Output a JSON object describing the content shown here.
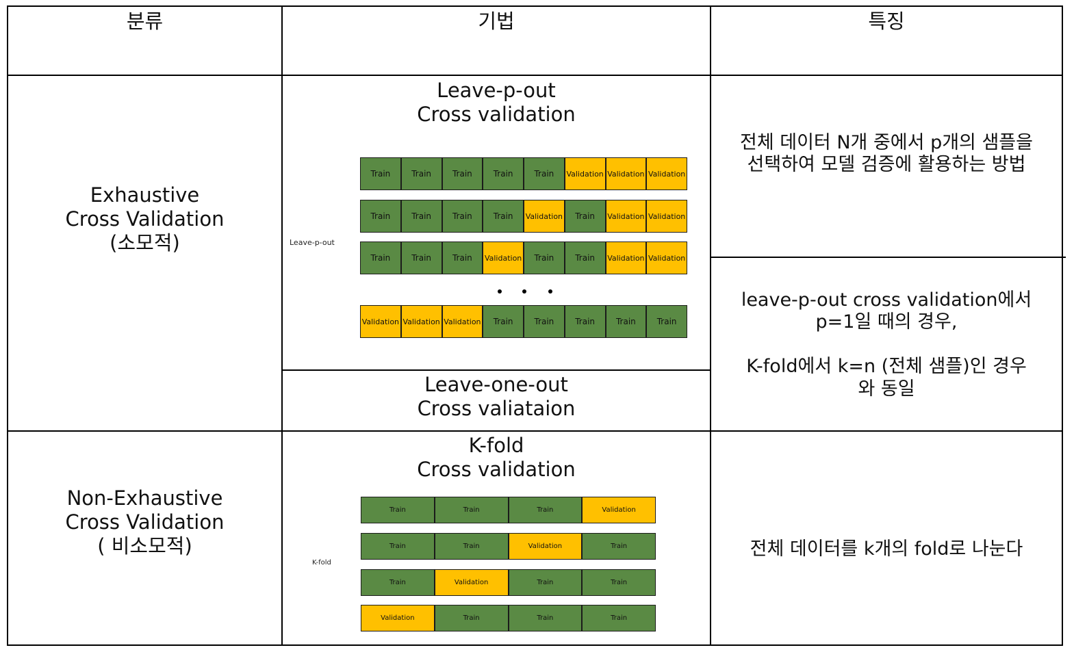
{
  "headers": {
    "category": "분류",
    "method": "기법",
    "feature": "특징"
  },
  "rows": {
    "exhaustive": {
      "category": "Exhaustive\nCross Validation\n(소모적)",
      "lpo_title": "Leave-p-out\nCross validation",
      "lpo_side_label": "Leave-p-out",
      "loo_title": "Leave-one-out\nCross valiataion",
      "lpo_desc": "전체 데이터 N개 중에서 p개의 샘플을\n선택하여 모델 검증에 활용하는 방법",
      "loo_desc": "leave-p-out cross validation에서\np=1일 때의 경우,\n\nK-fold에서 k=n (전체 샘플)인 경우\n와 동일"
    },
    "non_exhaustive": {
      "category": "Non-Exhaustive\nCross Validation\n( 비소모적)",
      "kfold_title": "K-fold\nCross validation",
      "kfold_side_label": "K-fold",
      "kfold_desc": "전체 데이터를 k개의 fold로 나눈다"
    }
  },
  "colors": {
    "train": "#5a8a44",
    "validation": "#ffc000",
    "border": "#000000"
  },
  "lpo_rows": [
    [
      "Train",
      "Train",
      "Train",
      "Train",
      "Train",
      "Validation",
      "Validation",
      "Validation"
    ],
    [
      "Train",
      "Train",
      "Train",
      "Train",
      "Validation",
      "Train",
      "Validation",
      "Validation"
    ],
    [
      "Train",
      "Train",
      "Train",
      "Validation",
      "Train",
      "Train",
      "Validation",
      "Validation"
    ],
    [
      "Validation",
      "Validation",
      "Validation",
      "Train",
      "Train",
      "Train",
      "Train",
      "Train"
    ]
  ],
  "kfold_rows": [
    [
      "Train",
      "Train",
      "Train",
      "Validation"
    ],
    [
      "Train",
      "Train",
      "Validation",
      "Train"
    ],
    [
      "Train",
      "Validation",
      "Train",
      "Train"
    ],
    [
      "Validation",
      "Train",
      "Train",
      "Train"
    ]
  ]
}
